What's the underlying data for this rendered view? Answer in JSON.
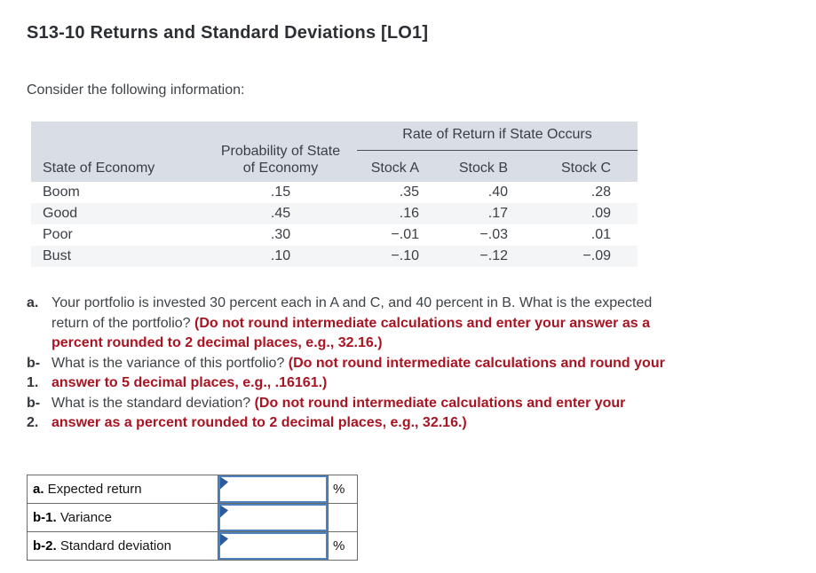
{
  "title": "S13-10 Returns and Standard Deviations [LO1]",
  "intro": "Consider the following information:",
  "info_table": {
    "span_header": "Rate of Return if State Occurs",
    "col1_header": "State of Economy",
    "col2_header_line1": "Probability of State",
    "col2_header_line2": "of Economy",
    "stock_headers": [
      "Stock A",
      "Stock B",
      "Stock C"
    ],
    "rows": [
      {
        "state": "Boom",
        "prob": ".15",
        "stock_a": ".35",
        "stock_b": ".40",
        "stock_c": ".28"
      },
      {
        "state": "Good",
        "prob": ".45",
        "stock_a": ".16",
        "stock_b": ".17",
        "stock_c": ".09"
      },
      {
        "state": "Poor",
        "prob": ".30",
        "stock_a": "−.01",
        "stock_b": "−.03",
        "stock_c": ".01"
      },
      {
        "state": "Bust",
        "prob": ".10",
        "stock_a": "−.10",
        "stock_b": "−.12",
        "stock_c": "−.09"
      }
    ]
  },
  "questions": [
    {
      "label": "a.",
      "text": "Your portfolio is invested 30 percent each in A and C, and 40 percent in B. What is the expected return of the portfolio? ",
      "instruction": "(Do not round intermediate calculations and enter your answer as a percent rounded to 2 decimal places, e.g., 32.16.)"
    },
    {
      "label": "b-1.",
      "text": "What is the variance of this portfolio? ",
      "instruction": "(Do not round intermediate calculations and round your answer to 5 decimal places, e.g., .16161.)"
    },
    {
      "label": "b-2.",
      "text": "What is the standard deviation? ",
      "instruction": "(Do not round intermediate calculations and enter your answer as a percent rounded to 2 decimal places, e.g., 32.16.)"
    }
  ],
  "answer_table": {
    "rows": [
      {
        "label_bold": "a.",
        "label": " Expected return",
        "input_value": "",
        "suffix": "%"
      },
      {
        "label_bold": "b-1.",
        "label": " Variance",
        "input_value": "",
        "suffix": ""
      },
      {
        "label_bold": "b-2.",
        "label": " Standard deviation",
        "input_value": "",
        "suffix": "%"
      }
    ]
  },
  "colors": {
    "instruction_red": "#a91422",
    "table_header_bg": "#d8dde6",
    "row_stripe_bg": "#f4f5f6",
    "input_border_blue": "#4f81bd",
    "input_marker_blue": "#2b5b9f"
  }
}
